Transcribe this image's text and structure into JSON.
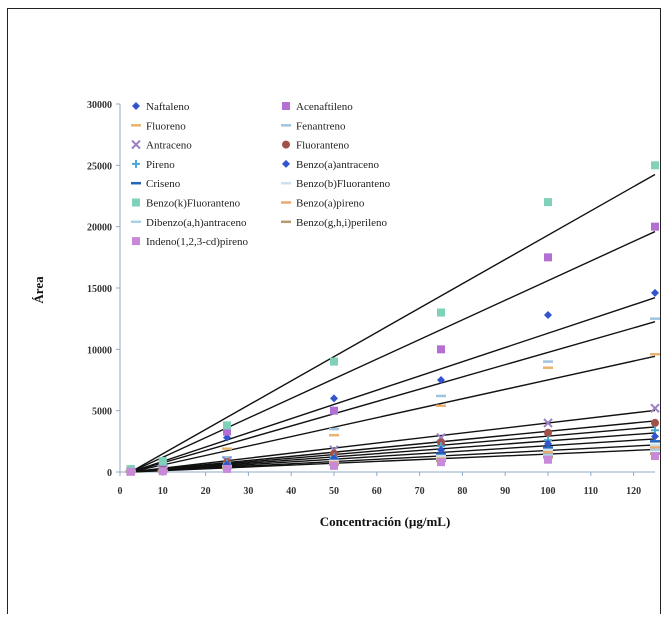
{
  "chart_data": {
    "type": "scatter",
    "title": "",
    "xlabel": "Concentración (µg/mL)",
    "ylabel": "Área",
    "xlim": [
      0,
      125
    ],
    "ylim": [
      0,
      30000
    ],
    "xticks": [
      "0",
      "10",
      "20",
      "30",
      "40",
      "50",
      "60",
      "70",
      "80",
      "90",
      "100",
      "110",
      "120"
    ],
    "yticks": [
      "0",
      "5000",
      "10000",
      "15000",
      "20000",
      "25000",
      "30000"
    ],
    "grid": false,
    "legend_position": "top-left",
    "x": [
      2.5,
      10,
      25,
      50,
      75,
      100,
      125
    ],
    "series": [
      {
        "name": "Naftaleno",
        "color": "#3355cc",
        "marker": "diamond",
        "values": [
          150,
          600,
          2800,
          6000,
          7500,
          12800,
          14600
        ]
      },
      {
        "name": "Acenaftileno",
        "color": "#b36fd1",
        "marker": "square",
        "values": [
          200,
          700,
          3300,
          5000,
          10000,
          17500,
          20000
        ]
      },
      {
        "name": "Fluoreno",
        "color": "#e8b470",
        "marker": "dash",
        "values": [
          100,
          400,
          1900,
          3000,
          5400,
          8500,
          9600
        ]
      },
      {
        "name": "Fenantreno",
        "color": "#9fc4e0",
        "marker": "dash",
        "values": [
          120,
          450,
          1200,
          3500,
          6200,
          9000,
          12500
        ]
      },
      {
        "name": "Antraceno",
        "color": "#9a7fc4",
        "marker": "x",
        "values": [
          60,
          200,
          900,
          1800,
          2800,
          4000,
          5200
        ]
      },
      {
        "name": "Fluoranteno",
        "color": "#a0524a",
        "marker": "circle",
        "values": [
          50,
          180,
          800,
          1500,
          2400,
          3200,
          4000
        ]
      },
      {
        "name": "Pireno",
        "color": "#4aa8d8",
        "marker": "plus",
        "values": [
          40,
          150,
          700,
          1200,
          2100,
          2600,
          3400
        ]
      },
      {
        "name": "Benzo(a)antraceno",
        "color": "#3355cc",
        "marker": "diamond",
        "values": [
          35,
          120,
          600,
          1100,
          1800,
          2300,
          2900
        ]
      },
      {
        "name": "Criseno",
        "color": "#2266bb",
        "marker": "dash",
        "values": [
          30,
          110,
          500,
          1000,
          1500,
          2000,
          2500
        ]
      },
      {
        "name": "Benzo(b)Fluoranteno",
        "color": "#cfe0ee",
        "marker": "dash",
        "values": [
          30,
          100,
          450,
          900,
          1300,
          1800,
          2200
        ]
      },
      {
        "name": "Benzo(k)Fluoranteno",
        "color": "#7fd1b9",
        "marker": "square",
        "values": [
          250,
          900,
          3800,
          9000,
          13000,
          22000,
          25000
        ]
      },
      {
        "name": "Benzo(a)pireno",
        "color": "#e8a870",
        "marker": "dash",
        "values": [
          25,
          90,
          400,
          800,
          1100,
          1600,
          2000
        ]
      },
      {
        "name": "Dibenzo(a,h)antraceno",
        "color": "#aad0e8",
        "marker": "dash",
        "values": [
          20,
          80,
          350,
          700,
          1000,
          1400,
          1800
        ]
      },
      {
        "name": "Benzo(g,h,i)perileno",
        "color": "#b89a70",
        "marker": "dash",
        "values": [
          20,
          70,
          300,
          600,
          900,
          1200,
          1500
        ]
      },
      {
        "name": "Indeno(1,2,3-cd)pireno",
        "color": "#c88ad8",
        "marker": "square",
        "values": [
          15,
          60,
          250,
          500,
          800,
          1000,
          1300
        ]
      }
    ],
    "fit_slopes": [
      198,
      160,
      116,
      100,
      77,
      41,
      34,
      30,
      26,
      22,
      18,
      15
    ]
  }
}
